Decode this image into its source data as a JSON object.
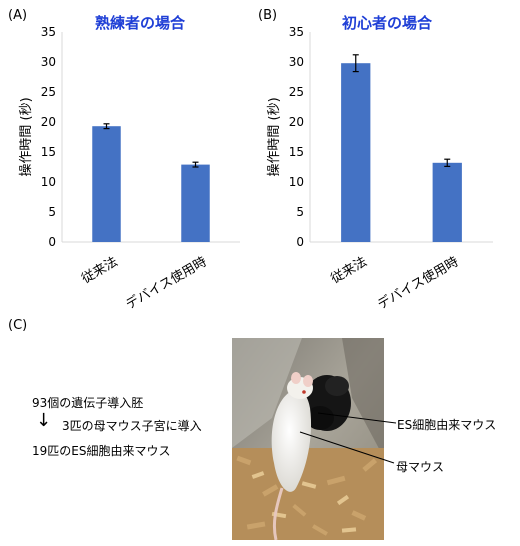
{
  "panel_labels": {
    "a": "(A)",
    "b": "(B)",
    "c": "(C)"
  },
  "colors": {
    "bar": "#4472c4",
    "title": "#1f3fd6",
    "axis": "#d9d9d9"
  },
  "chart_data": [
    {
      "type": "bar",
      "title": "熟練者の場合",
      "ylabel": "操作時間 (秒)",
      "ylim": [
        0,
        35
      ],
      "yticks": [
        0,
        5,
        10,
        15,
        20,
        25,
        30,
        35
      ],
      "categories": [
        "従来法",
        "デバイス使用時"
      ],
      "values": [
        19.3,
        12.9
      ],
      "errors": [
        0.4,
        0.4
      ],
      "grid": false,
      "legend": "none"
    },
    {
      "type": "bar",
      "title": "初心者の場合",
      "ylabel": "操作時間 (秒)",
      "ylim": [
        0,
        35
      ],
      "yticks": [
        0,
        5,
        10,
        15,
        20,
        25,
        30,
        35
      ],
      "categories": [
        "従来法",
        "デバイス使用時"
      ],
      "values": [
        29.8,
        13.2
      ],
      "errors": [
        1.4,
        0.6
      ],
      "grid": false,
      "legend": "none"
    }
  ],
  "diagram": {
    "line1": "93個の遺伝子導入胚",
    "line2": "3匹の母マウス子宮に導入",
    "line3": "19匹のES細胞由来マウス",
    "arrow": "↓"
  },
  "photo_labels": {
    "es_mouse": "ES細胞由来マウス",
    "mother_mouse": "母マウス"
  }
}
